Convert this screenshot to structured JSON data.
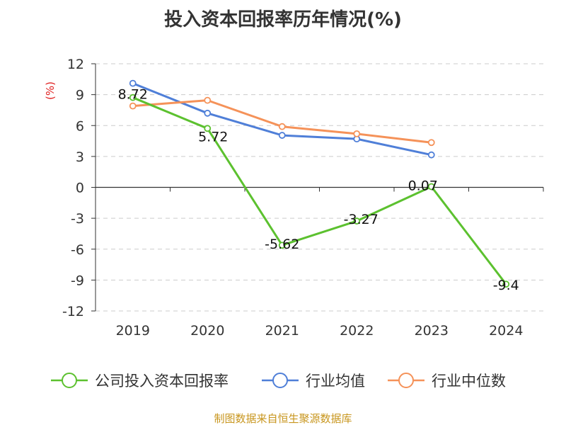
{
  "chart_data": {
    "type": "line",
    "title": "投入资本回报率历年情况(%)",
    "ylabel": "(%)",
    "xlabel": "",
    "categories": [
      "2019",
      "2020",
      "2021",
      "2022",
      "2023",
      "2024"
    ],
    "ylim": [
      -12,
      12
    ],
    "yticks": [
      12,
      9,
      6,
      3,
      0,
      -3,
      -6,
      -9,
      -12
    ],
    "grid": true,
    "legend_position": "bottom",
    "series": [
      {
        "name": "公司投入资本回报率",
        "color": "#5cc12f",
        "values": [
          8.72,
          5.72,
          -5.62,
          -3.27,
          0.07,
          -9.4
        ],
        "labels": [
          "8.72",
          "5.72",
          "-5.62",
          "-3.27",
          "0.07",
          "-9.4"
        ]
      },
      {
        "name": "行业均值",
        "color": "#4f7fd8",
        "values": [
          10.1,
          7.2,
          5.05,
          4.7,
          3.15,
          null
        ]
      },
      {
        "name": "行业中位数",
        "color": "#f59259",
        "values": [
          7.9,
          8.45,
          5.9,
          5.2,
          4.35,
          null
        ]
      }
    ]
  },
  "source": "制图数据来自恒生聚源数据库"
}
